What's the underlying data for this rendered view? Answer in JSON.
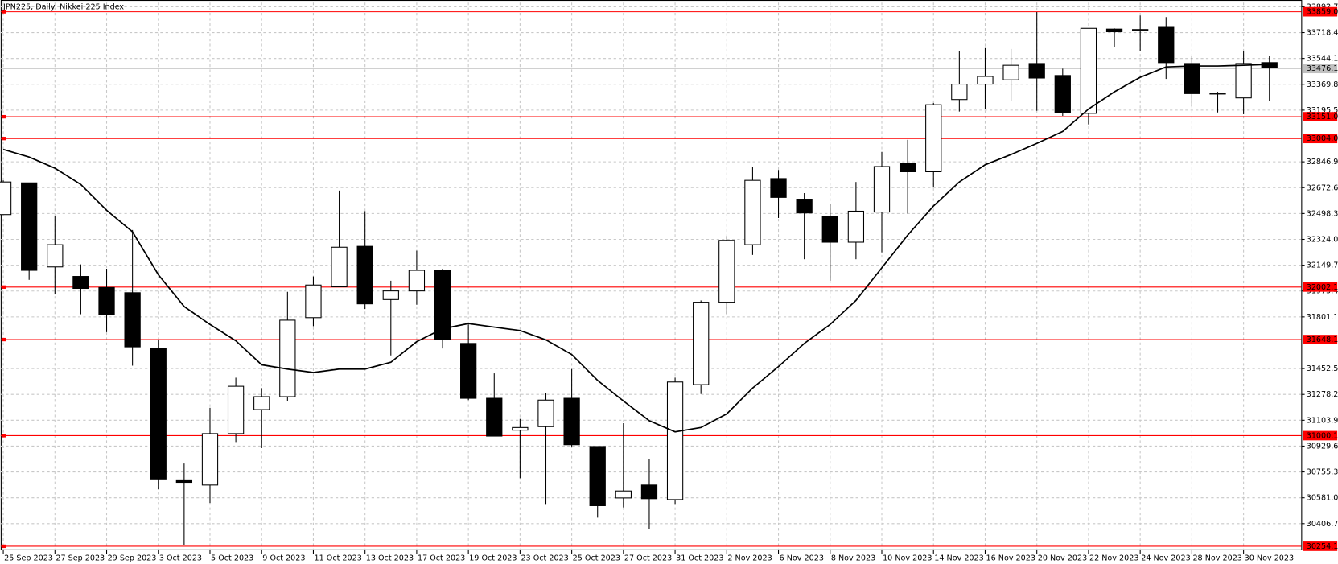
{
  "chart_data": {
    "type": "candlestick",
    "title": "JPN225, Daily:  Nikkei 225 Index",
    "categories": [
      "25 Sep 2023",
      null,
      "27 Sep 2023",
      null,
      "29 Sep 2023",
      null,
      "3 Oct 2023",
      null,
      "5 Oct 2023",
      null,
      "9 Oct 2023",
      null,
      "11 Oct 2023",
      null,
      "13 Oct 2023",
      null,
      "17 Oct 2023",
      null,
      "19 Oct 2023",
      null,
      "23 Oct 2023",
      null,
      "25 Oct 2023",
      null,
      "27 Oct 2023",
      null,
      "31 Oct 2023",
      null,
      "2 Nov 2023",
      null,
      "6 Nov 2023",
      null,
      "8 Nov 2023",
      null,
      "10 Nov 2023",
      null,
      "14 Nov 2023",
      null,
      "16 Nov 2023",
      null,
      "20 Nov 2023",
      null,
      "22 Nov 2023",
      null,
      "24 Nov 2023",
      null,
      "28 Nov 2023",
      null,
      "30 Nov 2023",
      null
    ],
    "open": [
      32491,
      32705,
      32138,
      32074,
      31999,
      31964,
      31588,
      30702,
      30667,
      31014,
      31176,
      31263,
      31796,
      32004,
      32277,
      31918,
      31976,
      32115,
      31622,
      31252,
      31037,
      31061,
      31252,
      30927,
      30580,
      30667,
      30569,
      31344,
      31900,
      32288,
      32734,
      32595,
      32479,
      32305,
      32508,
      32838,
      32780,
      33267,
      33371,
      33400,
      33510,
      33429,
      33174,
      33742,
      33733,
      33759,
      33510,
      33304,
      33278,
      33516
    ],
    "high": [
      32722,
      32705,
      32479,
      32155,
      32126,
      32387,
      31646,
      30812,
      31188,
      31391,
      31321,
      31970,
      32074,
      32653,
      32514,
      32045,
      32248,
      32126,
      31750,
      31420,
      31113,
      31287,
      31449,
      30927,
      31084,
      30841,
      31391,
      31912,
      32346,
      32815,
      32792,
      32636,
      32560,
      32711,
      32914,
      32995,
      33244,
      33591,
      33614,
      33608,
      33857,
      33475,
      33747,
      33747,
      33834,
      33823,
      33562,
      33319,
      33591,
      33562
    ],
    "low": [
      32491,
      32051,
      31952,
      31819,
      31698,
      31472,
      30638,
      30262,
      30546,
      30957,
      30916,
      31234,
      31738,
      32004,
      31854,
      31541,
      31883,
      31588,
      31240,
      30997,
      30713,
      30534,
      30927,
      30447,
      30516,
      30372,
      30534,
      31281,
      31819,
      32219,
      32468,
      32190,
      32045,
      32190,
      32236,
      32497,
      32676,
      33186,
      33203,
      33255,
      33191,
      33157,
      33099,
      33620,
      33591,
      33406,
      33220,
      33180,
      33168,
      33255
    ],
    "close": [
      32711,
      32115,
      32288,
      31993,
      31819,
      31599,
      30708,
      30685,
      31014,
      31333,
      31263,
      31779,
      32016,
      32271,
      31889,
      31976,
      32115,
      31646,
      31252,
      30997,
      31055,
      31240,
      30939,
      30528,
      30627,
      30575,
      31362,
      31900,
      32317,
      32722,
      32607,
      32502,
      32305,
      32514,
      32815,
      32780,
      33232,
      33371,
      33423,
      33498,
      33412,
      33180,
      33747,
      33724,
      33739,
      33516,
      33307,
      33310,
      33510,
      33481
    ],
    "ma_values": [
      32931,
      32879,
      32804,
      32694,
      32520,
      32375,
      32086,
      31871,
      31750,
      31640,
      31478,
      31449,
      31426,
      31449,
      31449,
      31495,
      31634,
      31721,
      31756,
      31732,
      31709,
      31646,
      31547,
      31373,
      31234,
      31101,
      31026,
      31055,
      31147,
      31321,
      31466,
      31622,
      31750,
      31912,
      32132,
      32352,
      32549,
      32711,
      32827,
      32896,
      32971,
      33052,
      33203,
      33319,
      33417,
      33487,
      33493,
      33493,
      33498,
      33504
    ],
    "up_color": "#ffffff",
    "down_color": "#000000",
    "ma_color": "#000000",
    "hline_color": "#ff0000",
    "hlines": [
      {
        "value": 33859,
        "label": "33859.0"
      },
      {
        "value": 33151,
        "label": "33151.0"
      },
      {
        "value": 33004,
        "label": "33004.0"
      },
      32002.1,
      31648.1,
      31000.1,
      30254.1
    ],
    "current_price": 33476.1,
    "current_price_color": "#c0c0c0",
    "ylim": [
      30227,
      33921
    ],
    "yticks": [
      33892.7,
      33718.4,
      33544.1,
      33369.8,
      33195.5,
      32846.9,
      32672.6,
      32498.3,
      {
        "value": 32324,
        "label": "32324.0"
      },
      32149.7,
      31975.4,
      31801.1,
      31452.5,
      31278.2,
      31103.9,
      30929.6,
      30755.3,
      {
        "value": 30581,
        "label": "30581.0"
      },
      30406.7
    ],
    "grid": true
  }
}
